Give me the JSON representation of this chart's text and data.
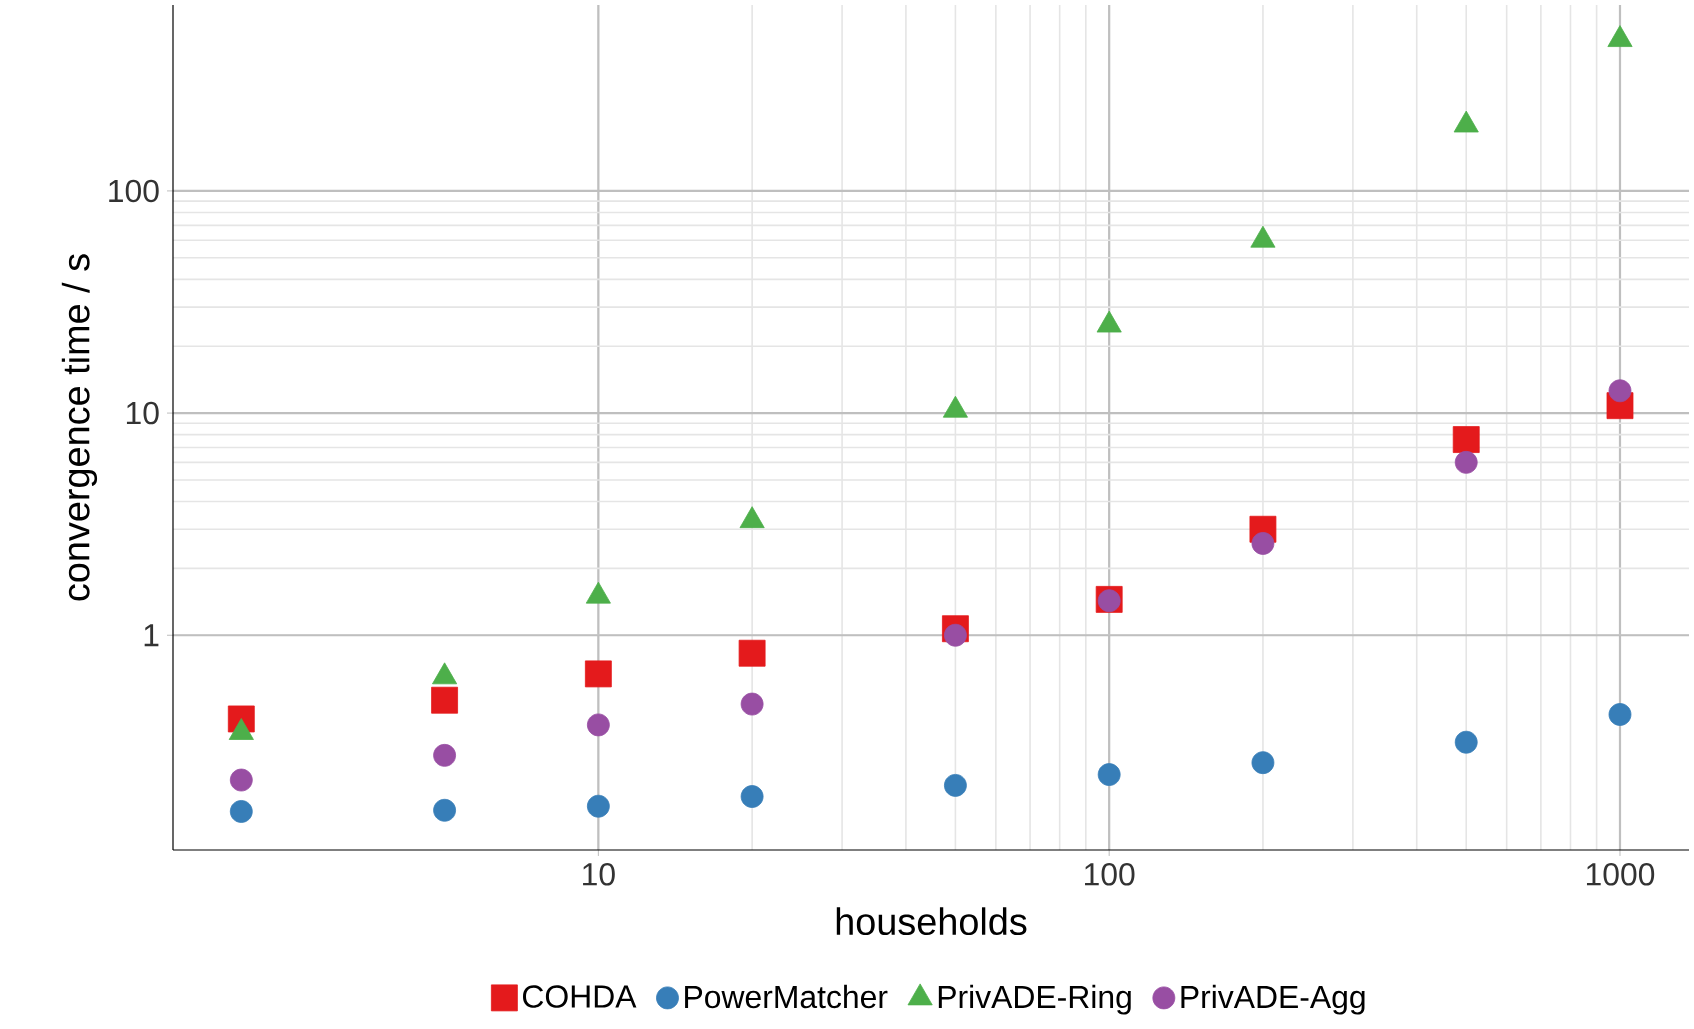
{
  "chart_data": {
    "type": "scatter",
    "xlabel": "households",
    "ylabel": "convergence time / s",
    "log": "xy",
    "grid": true,
    "legend": "bottom",
    "x": [
      2,
      5,
      10,
      20,
      50,
      100,
      200,
      500,
      1000
    ],
    "xlim": [
      1.47,
      1365
    ],
    "ylim": [
      0.108,
      687
    ],
    "xticks": [
      10,
      100,
      1000
    ],
    "yticks": [
      1,
      10,
      100
    ],
    "series": [
      {
        "name": "COHDA",
        "color": "#e41a1c",
        "marker": "square",
        "values": [
          0.42,
          0.51,
          0.67,
          0.83,
          1.07,
          1.45,
          3.0,
          7.6,
          10.8
        ]
      },
      {
        "name": "PowerMatcher",
        "color": "#377eb8",
        "marker": "circle",
        "values": [
          0.161,
          0.163,
          0.17,
          0.188,
          0.211,
          0.236,
          0.267,
          0.33,
          0.44
        ]
      },
      {
        "name": "PrivADE-Ring",
        "color": "#4daf4a",
        "marker": "triangle",
        "values": [
          0.365,
          0.65,
          1.5,
          3.28,
          10.3,
          24.9,
          60,
          198,
          480
        ]
      },
      {
        "name": "PrivADE-Agg",
        "color": "#984ea3",
        "marker": "circle",
        "values": [
          0.223,
          0.288,
          0.395,
          0.49,
          1.0,
          1.43,
          2.59,
          6.0,
          12.6
        ]
      }
    ]
  }
}
